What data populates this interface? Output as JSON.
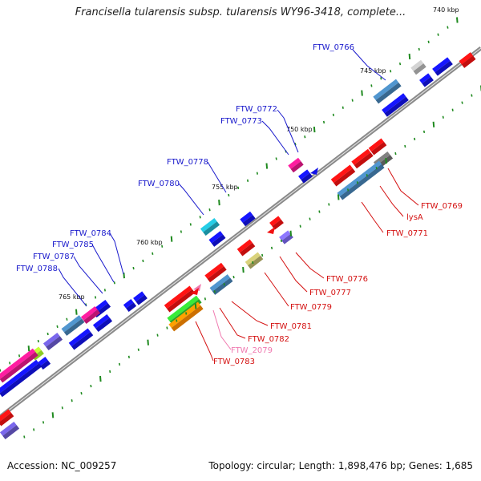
{
  "header": {
    "title": "Francisella tularensis subsp. tularensis WY96-3418, complete..."
  },
  "footer": {
    "accession_label": "Accession: NC_009257",
    "summary": "Topology: circular; Length: 1,898,476 bp; Genes: 1,685"
  },
  "colors": {
    "backbone": "#8a8a8a",
    "tick": "#1f8a1f",
    "label_blue": "#1a1acc",
    "label_red": "#d41111",
    "label_pink": "#f07ab0"
  },
  "scale_labels": [
    {
      "text": "740 kbp",
      "kb": 740
    },
    {
      "text": "745 kbp",
      "kb": 745
    },
    {
      "text": "750 kbp",
      "kb": 750
    },
    {
      "text": "755 kbp",
      "kb": 755
    },
    {
      "text": "760 kbp",
      "kb": 760
    },
    {
      "text": "765 kbp",
      "kb": 765
    }
  ],
  "gene_labels_top": [
    {
      "name": "FTW_0766"
    },
    {
      "name": "FTW_0772"
    },
    {
      "name": "FTW_0773"
    },
    {
      "name": "FTW_0778"
    },
    {
      "name": "FTW_0780"
    },
    {
      "name": "FTW_0784"
    },
    {
      "name": "FTW_0785"
    },
    {
      "name": "FTW_0787"
    },
    {
      "name": "FTW_0788"
    }
  ],
  "gene_labels_bottom": [
    {
      "name": "FTW_0769"
    },
    {
      "name": "lysA"
    },
    {
      "name": "FTW_0771"
    },
    {
      "name": "FTW_0776"
    },
    {
      "name": "FTW_0777"
    },
    {
      "name": "FTW_0779"
    },
    {
      "name": "FTW_0781"
    },
    {
      "name": "FTW_0782"
    },
    {
      "name": "FTW_2079"
    },
    {
      "name": "FTW_0783"
    }
  ]
}
